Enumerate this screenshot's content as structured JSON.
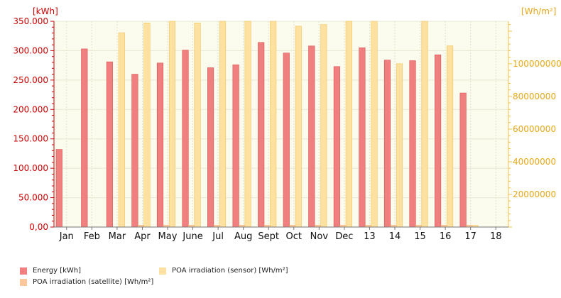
{
  "chart_data": {
    "type": "bar",
    "categories": [
      "Jan",
      "Feb",
      "Mar",
      "Apr",
      "May",
      "June",
      "Jul",
      "Aug",
      "Sept",
      "Oct",
      "Nov",
      "Dec",
      "13",
      "14",
      "15",
      "16",
      "17",
      "18"
    ],
    "y_left": {
      "unit_label": "[kWh]",
      "ylim": [
        0,
        350000
      ],
      "tick_labels": [
        "0,00",
        "50.000",
        "100.000",
        "150.000",
        "200.000",
        "250.000",
        "300.000",
        "350.000"
      ],
      "tick_values": [
        0,
        50000,
        100000,
        150000,
        200000,
        250000,
        300000,
        350000
      ]
    },
    "y_right": {
      "unit_label": "[Wh/m²]",
      "ylim": [
        0,
        126000000
      ],
      "tick_labels": [
        "20000000",
        "40000000",
        "60000000",
        "80000000",
        "100000000"
      ],
      "tick_values": [
        20000000,
        40000000,
        60000000,
        80000000,
        100000000
      ]
    },
    "series": [
      {
        "name": "Energy [kWh]",
        "axis": "left",
        "color": "#f08080",
        "values": [
          132000,
          303000,
          281000,
          260000,
          279000,
          301000,
          271000,
          276000,
          314000,
          296000,
          308000,
          273000,
          305000,
          284000,
          283000,
          293000,
          228000,
          null
        ]
      },
      {
        "name": "POA irradiation (satellite) [Wh/m²]",
        "axis": "right",
        "color": "#fcc89b",
        "values": [
          null,
          null,
          null,
          1000000,
          1000000,
          1000000,
          1000000,
          1000000,
          1000000,
          1000000,
          1000000,
          1000000,
          1000000,
          1000000,
          1000000,
          1000000,
          1000000,
          null
        ]
      },
      {
        "name": "POA irradiation (sensor) [Wh/m²]",
        "axis": "right",
        "color": "#fde1a0",
        "values": [
          null,
          null,
          119000000,
          125000000,
          126000000,
          125000000,
          126000000,
          126000000,
          126000000,
          123000000,
          124000000,
          126000000,
          126000000,
          100000000,
          126000000,
          111000000,
          1000000,
          null
        ]
      }
    ],
    "legend_position": "bottom-left",
    "grid": true
  }
}
